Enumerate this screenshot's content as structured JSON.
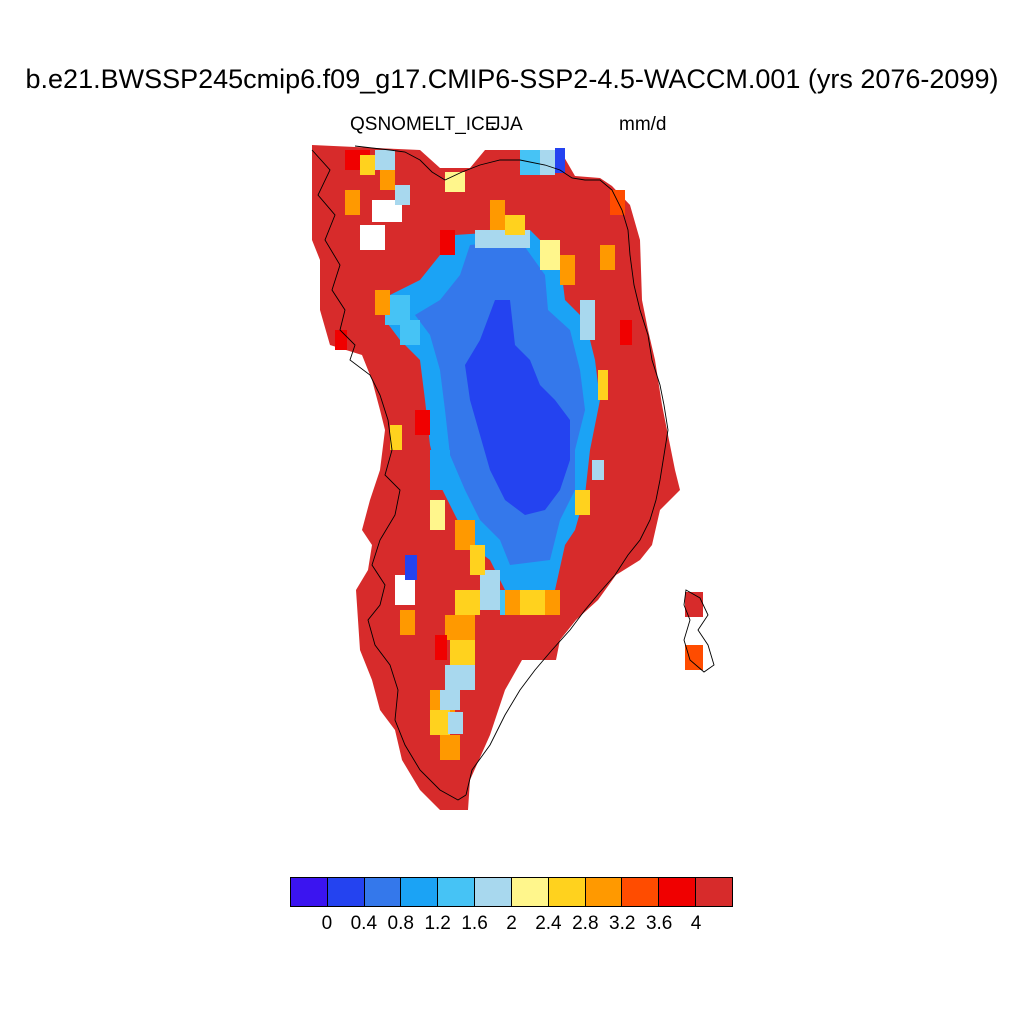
{
  "title": "b.e21.BWSSP245cmip6.f09_g17.CMIP6-SSP2-4.5-WACCM.001 (yrs 2076-2099)",
  "subtitle": {
    "variable": "QSNOMELT_ICE",
    "season": "JJA",
    "units": "mm/d"
  },
  "colorbar": {
    "colors": [
      "#3b14f0",
      "#2443f0",
      "#3478eb",
      "#1ba3f5",
      "#46c3f5",
      "#a8d8ee",
      "#fff68c",
      "#ffd21e",
      "#ff9900",
      "#ff4c00",
      "#f00000",
      "#d72b2b"
    ],
    "labels": [
      "0",
      "0.4",
      "0.8",
      "1.2",
      "1.6",
      "2",
      "2.4",
      "2.8",
      "3.2",
      "3.6",
      "4"
    ]
  },
  "map_legend": {
    "region": "Greenland",
    "class_colors": {
      "high_melt": "#d72b2b",
      "red": "#f00000",
      "orange_red": "#ff4c00",
      "orange": "#ff9900",
      "yellow": "#ffd21e",
      "pale_yellow": "#fff68c",
      "light_blue": "#a8d8ee",
      "sky_blue": "#46c3f5",
      "blue": "#1ba3f5",
      "mid_blue": "#3478eb",
      "deep_blue": "#2443f0"
    }
  }
}
